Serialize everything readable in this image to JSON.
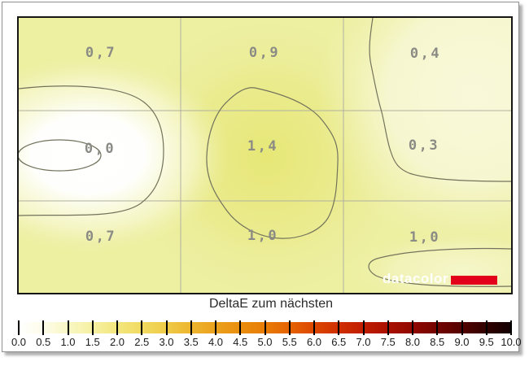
{
  "map": {
    "values": [
      [
        "0,7",
        "0,9",
        "0,4"
      ],
      [
        "0,0",
        "1,4",
        "0,3"
      ],
      [
        "0,7",
        "1,0",
        "1,0"
      ]
    ],
    "value_color": "#8b8b85"
  },
  "logo": {
    "text": "datacolor",
    "accent_color": "#e3001b"
  },
  "colorbar": {
    "title": "DeltaE zum nächsten",
    "labels": [
      "0.0",
      "0.5",
      "1.0",
      "1.5",
      "2.0",
      "2.5",
      "3.0",
      "3.5",
      "4.0",
      "4.5",
      "5.0",
      "5.5",
      "6.0",
      "6.5",
      "7.0",
      "7.5",
      "8.0",
      "8.5",
      "9.0",
      "9.5",
      "10.0"
    ],
    "gradient": [
      "#ffffff",
      "#fdfce9",
      "#f9f7c4",
      "#f6f0a2",
      "#f3e67e",
      "#f1da60",
      "#efcb47",
      "#edb52f",
      "#eba11c",
      "#e98e0e",
      "#e87c05",
      "#e56303",
      "#dc4700",
      "#d02f00",
      "#c01d00",
      "#aa1000",
      "#900800",
      "#740400",
      "#540200",
      "#300100",
      "#120000"
    ]
  },
  "chart_data": {
    "type": "heatmap",
    "title": "DeltaE zum nächsten",
    "rows": 3,
    "cols": 3,
    "values": [
      [
        0.7,
        0.9,
        0.4
      ],
      [
        0.0,
        1.4,
        0.3
      ],
      [
        0.7,
        1.0,
        1.0
      ]
    ],
    "value_labels": [
      [
        "0,7",
        "0,9",
        "0,4"
      ],
      [
        "0,0",
        "1,4",
        "0,3"
      ],
      [
        "0,7",
        "1,0",
        "1,0"
      ]
    ],
    "colorbar": {
      "min": 0.0,
      "max": 10.0,
      "tick_step": 0.5,
      "ticks": [
        0.0,
        0.5,
        1.0,
        1.5,
        2.0,
        2.5,
        3.0,
        3.5,
        4.0,
        4.5,
        5.0,
        5.5,
        6.0,
        6.5,
        7.0,
        7.5,
        8.0,
        8.5,
        9.0,
        9.5,
        10.0
      ],
      "position": "bottom",
      "colors_low_to_high": [
        "#ffffff",
        "#f6f0a2",
        "#f3e67e",
        "#efcb47",
        "#eba11c",
        "#e87c05",
        "#dc4700",
        "#c01d00",
        "#900800",
        "#540200",
        "#120000"
      ]
    },
    "grid": true,
    "notes": "3x3 display-uniformity contour map; white = low deltaE, saturated yellow = higher"
  }
}
